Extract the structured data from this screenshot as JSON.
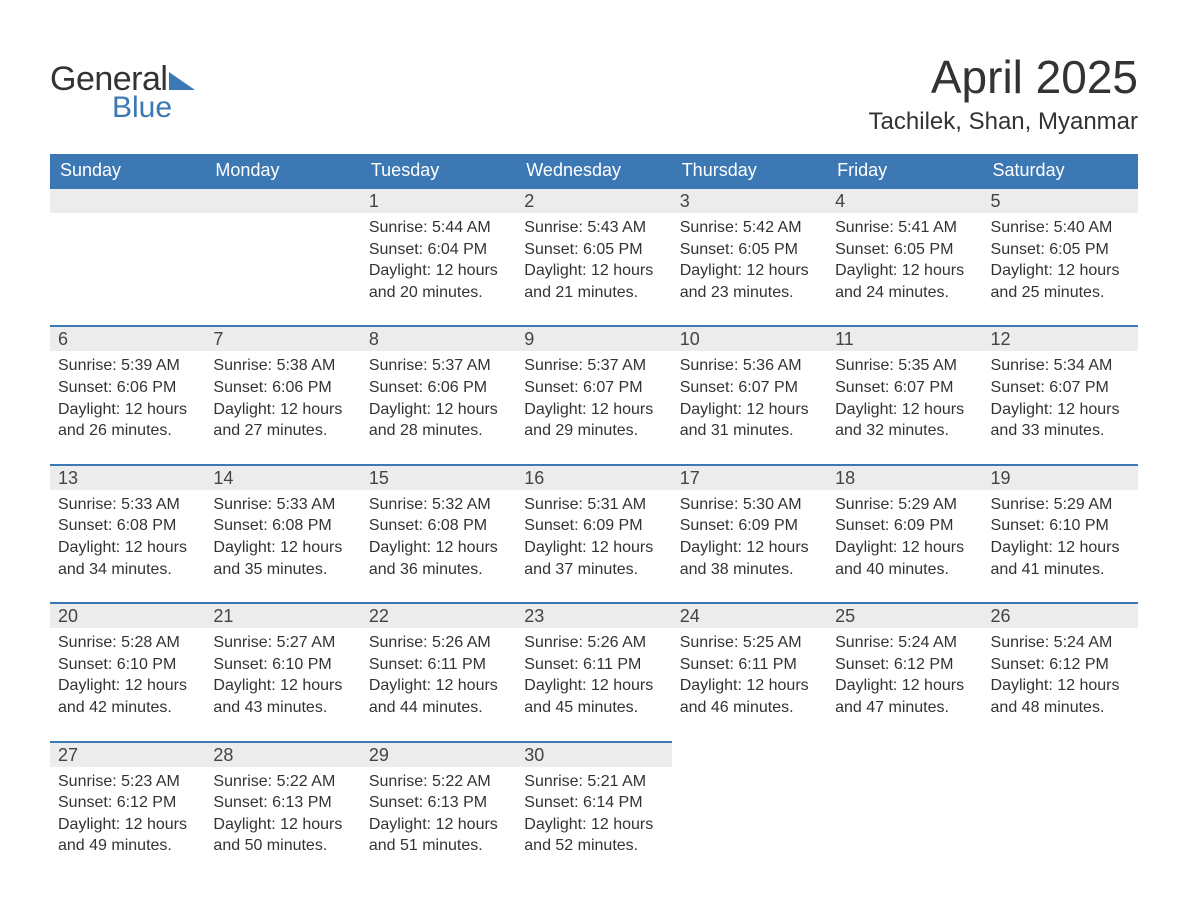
{
  "logo": {
    "text_general": "General",
    "text_blue": "Blue",
    "triangle_color": "#3c78b4"
  },
  "title": "April 2025",
  "location": "Tachilek, Shan, Myanmar",
  "colors": {
    "brand_blue": "#3c78b4",
    "header_text": "#ffffff",
    "daynum_bg": "#ececec",
    "body_text": "#333333",
    "page_bg": "#ffffff"
  },
  "fonts": {
    "title_size_pt": 34,
    "subtitle_size_pt": 18,
    "dow_size_pt": 14,
    "body_size_pt": 12
  },
  "days_of_week": [
    "Sunday",
    "Monday",
    "Tuesday",
    "Wednesday",
    "Thursday",
    "Friday",
    "Saturday"
  ],
  "weeks": [
    [
      null,
      null,
      {
        "n": "1",
        "sunrise": "5:44 AM",
        "sunset": "6:04 PM",
        "daylight": "12 hours and 20 minutes."
      },
      {
        "n": "2",
        "sunrise": "5:43 AM",
        "sunset": "6:05 PM",
        "daylight": "12 hours and 21 minutes."
      },
      {
        "n": "3",
        "sunrise": "5:42 AM",
        "sunset": "6:05 PM",
        "daylight": "12 hours and 23 minutes."
      },
      {
        "n": "4",
        "sunrise": "5:41 AM",
        "sunset": "6:05 PM",
        "daylight": "12 hours and 24 minutes."
      },
      {
        "n": "5",
        "sunrise": "5:40 AM",
        "sunset": "6:05 PM",
        "daylight": "12 hours and 25 minutes."
      }
    ],
    [
      {
        "n": "6",
        "sunrise": "5:39 AM",
        "sunset": "6:06 PM",
        "daylight": "12 hours and 26 minutes."
      },
      {
        "n": "7",
        "sunrise": "5:38 AM",
        "sunset": "6:06 PM",
        "daylight": "12 hours and 27 minutes."
      },
      {
        "n": "8",
        "sunrise": "5:37 AM",
        "sunset": "6:06 PM",
        "daylight": "12 hours and 28 minutes."
      },
      {
        "n": "9",
        "sunrise": "5:37 AM",
        "sunset": "6:07 PM",
        "daylight": "12 hours and 29 minutes."
      },
      {
        "n": "10",
        "sunrise": "5:36 AM",
        "sunset": "6:07 PM",
        "daylight": "12 hours and 31 minutes."
      },
      {
        "n": "11",
        "sunrise": "5:35 AM",
        "sunset": "6:07 PM",
        "daylight": "12 hours and 32 minutes."
      },
      {
        "n": "12",
        "sunrise": "5:34 AM",
        "sunset": "6:07 PM",
        "daylight": "12 hours and 33 minutes."
      }
    ],
    [
      {
        "n": "13",
        "sunrise": "5:33 AM",
        "sunset": "6:08 PM",
        "daylight": "12 hours and 34 minutes."
      },
      {
        "n": "14",
        "sunrise": "5:33 AM",
        "sunset": "6:08 PM",
        "daylight": "12 hours and 35 minutes."
      },
      {
        "n": "15",
        "sunrise": "5:32 AM",
        "sunset": "6:08 PM",
        "daylight": "12 hours and 36 minutes."
      },
      {
        "n": "16",
        "sunrise": "5:31 AM",
        "sunset": "6:09 PM",
        "daylight": "12 hours and 37 minutes."
      },
      {
        "n": "17",
        "sunrise": "5:30 AM",
        "sunset": "6:09 PM",
        "daylight": "12 hours and 38 minutes."
      },
      {
        "n": "18",
        "sunrise": "5:29 AM",
        "sunset": "6:09 PM",
        "daylight": "12 hours and 40 minutes."
      },
      {
        "n": "19",
        "sunrise": "5:29 AM",
        "sunset": "6:10 PM",
        "daylight": "12 hours and 41 minutes."
      }
    ],
    [
      {
        "n": "20",
        "sunrise": "5:28 AM",
        "sunset": "6:10 PM",
        "daylight": "12 hours and 42 minutes."
      },
      {
        "n": "21",
        "sunrise": "5:27 AM",
        "sunset": "6:10 PM",
        "daylight": "12 hours and 43 minutes."
      },
      {
        "n": "22",
        "sunrise": "5:26 AM",
        "sunset": "6:11 PM",
        "daylight": "12 hours and 44 minutes."
      },
      {
        "n": "23",
        "sunrise": "5:26 AM",
        "sunset": "6:11 PM",
        "daylight": "12 hours and 45 minutes."
      },
      {
        "n": "24",
        "sunrise": "5:25 AM",
        "sunset": "6:11 PM",
        "daylight": "12 hours and 46 minutes."
      },
      {
        "n": "25",
        "sunrise": "5:24 AM",
        "sunset": "6:12 PM",
        "daylight": "12 hours and 47 minutes."
      },
      {
        "n": "26",
        "sunrise": "5:24 AM",
        "sunset": "6:12 PM",
        "daylight": "12 hours and 48 minutes."
      }
    ],
    [
      {
        "n": "27",
        "sunrise": "5:23 AM",
        "sunset": "6:12 PM",
        "daylight": "12 hours and 49 minutes."
      },
      {
        "n": "28",
        "sunrise": "5:22 AM",
        "sunset": "6:13 PM",
        "daylight": "12 hours and 50 minutes."
      },
      {
        "n": "29",
        "sunrise": "5:22 AM",
        "sunset": "6:13 PM",
        "daylight": "12 hours and 51 minutes."
      },
      {
        "n": "30",
        "sunrise": "5:21 AM",
        "sunset": "6:14 PM",
        "daylight": "12 hours and 52 minutes."
      },
      null,
      null,
      null
    ]
  ],
  "labels": {
    "sunrise_prefix": "Sunrise: ",
    "sunset_prefix": "Sunset: ",
    "daylight_prefix": "Daylight: "
  }
}
